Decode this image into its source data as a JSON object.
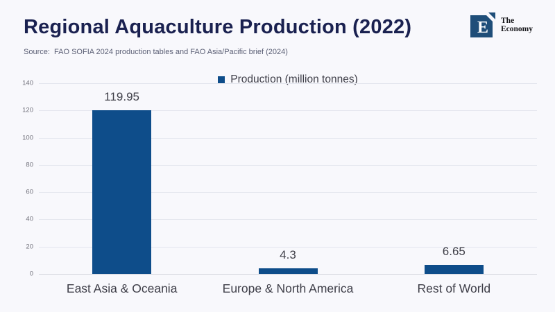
{
  "header": {
    "title": "Regional Aquaculture Production (2022)",
    "source": "Source:  FAO SOFIA 2024 production tables and FAO Asia/Pacific brief (2024)",
    "logo": {
      "letter": "E",
      "name_line1": "The",
      "name_line2": "Economy"
    }
  },
  "legend": {
    "label": "Production (million tonnes)"
  },
  "colors": {
    "bar": "#0e4d8a",
    "title_text": "#1a2150",
    "background": "#f8f8fc",
    "logo_square": "#1f4e79",
    "gridline": "#e4e6ee",
    "axis_line": "#d2d4dc"
  },
  "chart_data": {
    "type": "bar",
    "title": "Regional Aquaculture Production (2022)",
    "categories": [
      "East Asia & Oceania",
      "Europe & North America",
      "Rest of World"
    ],
    "values": [
      119.95,
      4.3,
      6.65
    ],
    "value_labels": [
      "119.95",
      "4.3",
      "6.65"
    ],
    "series_name": "Production (million tonnes)",
    "xlabel": "",
    "ylabel": "",
    "ylim": [
      0,
      140
    ],
    "yticks": [
      0,
      20,
      40,
      60,
      80,
      100,
      120,
      140
    ],
    "grid": true,
    "legend_position": "top-center",
    "source": "FAO SOFIA 2024 production tables and FAO Asia/Pacific brief (2024)"
  }
}
